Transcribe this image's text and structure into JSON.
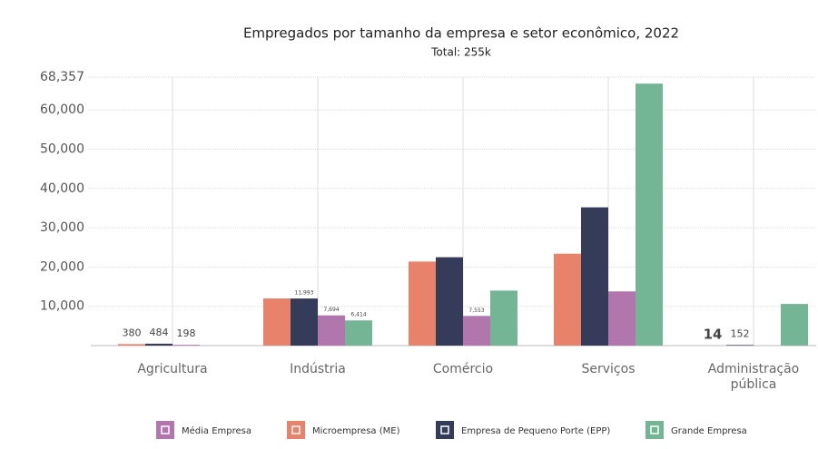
{
  "chart_data": {
    "type": "bar",
    "title": "Empregados por tamanho da empresa e setor econômico, 2022",
    "subtitle": "Total: 255k",
    "categories": [
      "Agricultura",
      "Indústria",
      "Comércio",
      "Serviços",
      "Administração pública"
    ],
    "series": [
      {
        "name": "Microempresa (ME)",
        "color": "#e8826a",
        "values": [
          380,
          12000,
          21400,
          23400,
          14
        ],
        "value_labels": [
          "380",
          null,
          null,
          null,
          "14"
        ]
      },
      {
        "name": "Empresa de Pequeno Porte (EPP)",
        "color": "#343c59",
        "values": [
          484,
          11993,
          22500,
          35200,
          152
        ],
        "value_labels": [
          "484",
          "11,993",
          null,
          null,
          "152"
        ]
      },
      {
        "name": "Média Empresa",
        "color": "#b177ad",
        "values": [
          198,
          7694,
          7553,
          13800,
          null
        ],
        "value_labels": [
          "198",
          "7,694",
          "7,553",
          null,
          null
        ]
      },
      {
        "name": "Grande Empresa",
        "color": "#74b595",
        "values": [
          null,
          6414,
          14000,
          66700,
          10600
        ],
        "value_labels": [
          null,
          "6,414",
          null,
          null,
          null
        ]
      }
    ],
    "ylim": [
      0,
      68357
    ],
    "yticks": [
      {
        "value": 10000,
        "label": "10,000"
      },
      {
        "value": 20000,
        "label": "20,000"
      },
      {
        "value": 30000,
        "label": "30,000"
      },
      {
        "value": 40000,
        "label": "40,000"
      },
      {
        "value": 50000,
        "label": "50,000"
      },
      {
        "value": 60000,
        "label": "60,000"
      },
      {
        "value": 68357,
        "label": "68,357"
      }
    ],
    "grid": true
  }
}
